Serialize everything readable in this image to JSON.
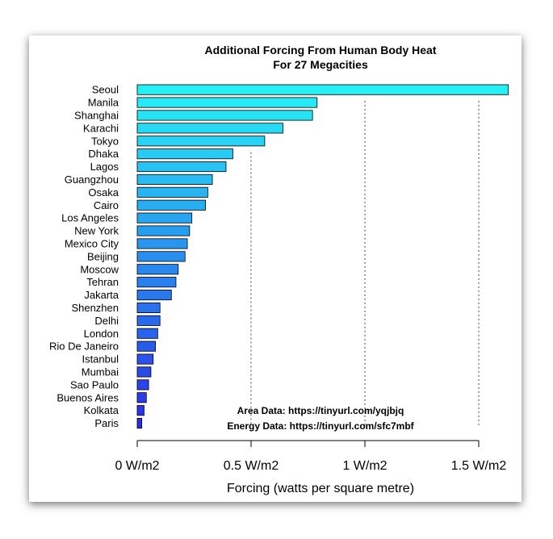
{
  "chart_data": {
    "type": "bar",
    "orientation": "horizontal",
    "title": [
      "Additional Forcing From Human Body Heat",
      "For 27 Megacities"
    ],
    "xlabel": "Forcing (watts per square metre)",
    "ylabel": "",
    "xlim": [
      0,
      1.65
    ],
    "xticks": [
      0,
      0.5,
      1,
      1.5
    ],
    "xtick_labels": [
      "0 W/m2",
      "0.5 W/m2",
      "1 W/m2",
      "1.5 W/m2"
    ],
    "categories": [
      "Seoul",
      "Manila",
      "Shanghai",
      "Karachi",
      "Tokyo",
      "Dhaka",
      "Lagos",
      "Guangzhou",
      "Osaka",
      "Cairo",
      "Los Angeles",
      "New York",
      "Mexico City",
      "Beijing",
      "Moscow",
      "Tehran",
      "Jakarta",
      "Shenzhen",
      "Delhi",
      "London",
      "Rio De Janeiro",
      "Istanbul",
      "Mumbai",
      "Sao Paulo",
      "Buenos Aires",
      "Kolkata",
      "Paris"
    ],
    "values": [
      1.63,
      0.79,
      0.77,
      0.64,
      0.56,
      0.42,
      0.39,
      0.33,
      0.31,
      0.3,
      0.24,
      0.23,
      0.22,
      0.21,
      0.18,
      0.17,
      0.15,
      0.1,
      0.1,
      0.09,
      0.08,
      0.07,
      0.06,
      0.05,
      0.04,
      0.03,
      0.02
    ],
    "reference_lines": [
      0.5,
      1,
      1.5
    ],
    "annotations": [
      "Area Data: https://tinyurl.com/yqjbjq",
      "Energy Data: https://tinyurl.com/sfc7mbf"
    ],
    "colors": {
      "top": "#27f0f5",
      "bottom": "#2a2ee8",
      "bar_border": "#000000",
      "reference_line": "#444444"
    },
    "grid": false,
    "legend": "none"
  }
}
